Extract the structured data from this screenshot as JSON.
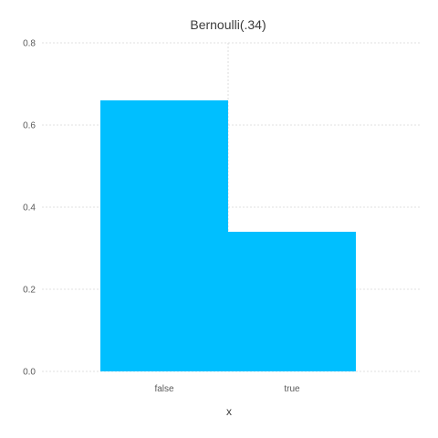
{
  "chart_data": {
    "type": "bar",
    "title": "Bernoulli(.34)",
    "xlabel": "x",
    "ylabel": "",
    "categories": [
      "false",
      "true"
    ],
    "values": [
      0.66,
      0.34
    ],
    "ylim": [
      0,
      0.8
    ],
    "yticks": [
      "0.0",
      "0.2",
      "0.4",
      "0.6",
      "0.8"
    ],
    "grid": true,
    "legend": "none",
    "bar_color": "#00BFFF"
  }
}
